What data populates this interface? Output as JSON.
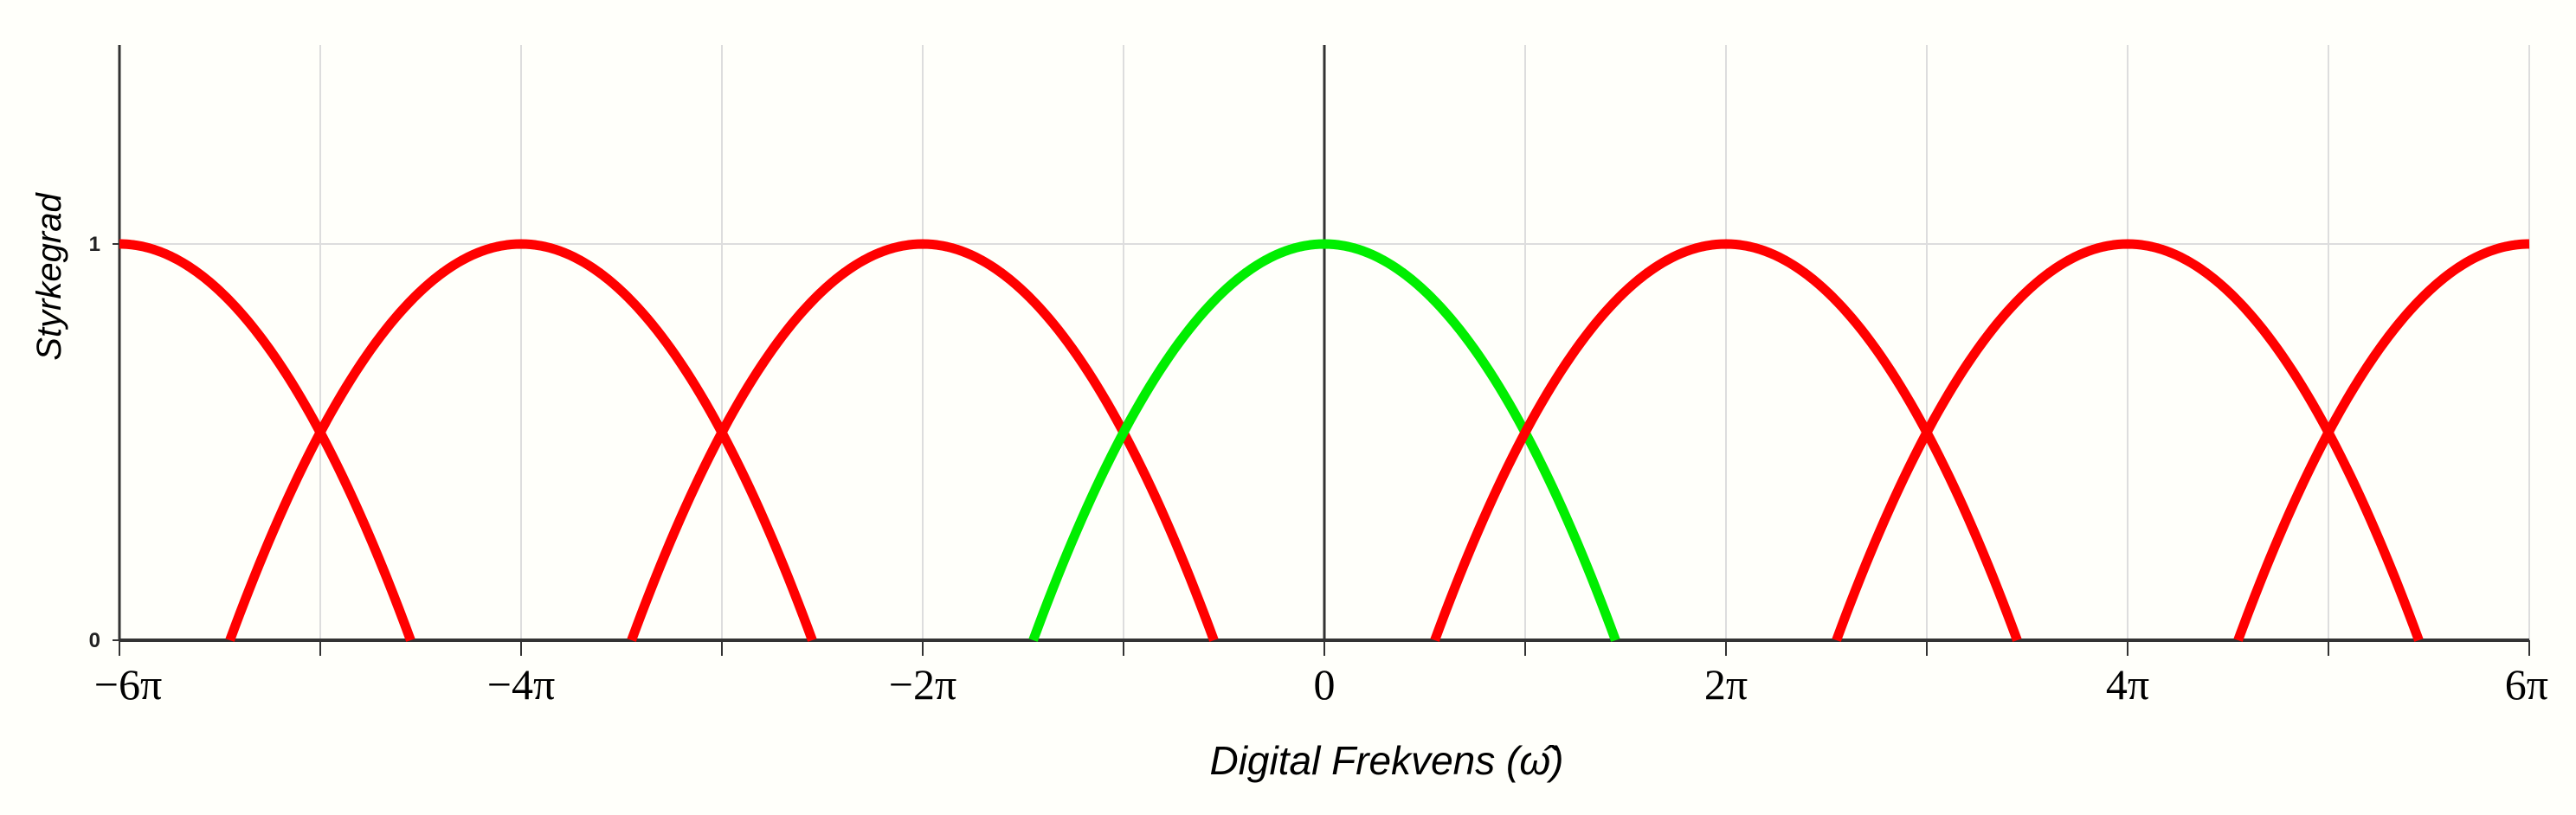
{
  "chart_data": {
    "type": "line",
    "xlabel": "Digital Frekvens (ω̂)",
    "ylabel": "Styrkegrad",
    "xlim_pi": [
      -6,
      6
    ],
    "ylim": [
      0,
      1.5
    ],
    "x_ticks": [
      {
        "value_pi": -6,
        "label": "−6π"
      },
      {
        "value_pi": -4,
        "label": "−4π"
      },
      {
        "value_pi": -2,
        "label": "−2π"
      },
      {
        "value_pi": 0,
        "label": "0"
      },
      {
        "value_pi": 2,
        "label": "2π"
      },
      {
        "value_pi": 4,
        "label": "4π"
      },
      {
        "value_pi": 6,
        "label": "6π"
      }
    ],
    "x_minor_ticks_pi": [
      -5,
      -3,
      -1,
      1,
      3,
      5
    ],
    "y_ticks": [
      {
        "value": 0,
        "label": "0"
      },
      {
        "value": 1,
        "label": "1"
      }
    ],
    "grid": true,
    "curve": {
      "shape": "inverted parabola, peak 1 at center, zero at ±1.45π",
      "half_width_pi": 1.45,
      "peak": 1
    },
    "series": [
      {
        "center_pi": -6,
        "color": "#ff0000"
      },
      {
        "center_pi": -4,
        "color": "#ff0000"
      },
      {
        "center_pi": -2,
        "color": "#ff0000"
      },
      {
        "center_pi": 0,
        "color": "#00ee00"
      },
      {
        "center_pi": 2,
        "color": "#ff0000"
      },
      {
        "center_pi": 4,
        "color": "#ff0000"
      },
      {
        "center_pi": 6,
        "color": "#ff0000"
      }
    ],
    "colors": {
      "alias": "#ff0000",
      "baseband": "#00ee00",
      "grid": "#dddddd",
      "axis": "#333333"
    }
  }
}
